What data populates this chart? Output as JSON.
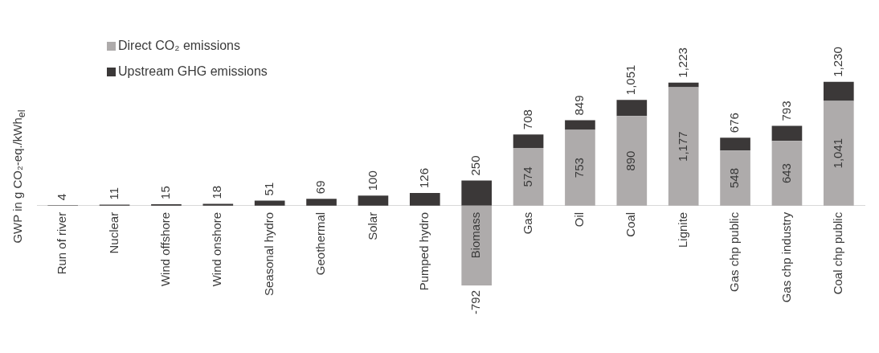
{
  "chart_data": {
    "type": "bar",
    "stacked": true,
    "ylabel": "GWP in g CO₂-eq./kWh$_{el}$",
    "categories": [
      "Run of river",
      "Nuclear",
      "Wind offshore",
      "Wind onshore",
      "Seasonal hydro",
      "Geothermal",
      "Solar",
      "Pumped hydro",
      "Biomass",
      "Gas",
      "Oil",
      "Coal",
      "Lignite",
      "Gas chp public",
      "Gas chp industry",
      "Coal chp public"
    ],
    "series": [
      {
        "name": "Direct CO₂ emissions",
        "color": "#aeabab",
        "values": [
          null,
          null,
          null,
          null,
          null,
          null,
          null,
          null,
          -792,
          574,
          753,
          890,
          1177,
          548,
          643,
          1041
        ],
        "value_labels": [
          null,
          null,
          null,
          null,
          null,
          null,
          null,
          null,
          "-792",
          "574",
          "753",
          "890",
          "1,177",
          "548",
          "643",
          "1,041"
        ]
      },
      {
        "name": "Upstream GHG emissions",
        "color": "#3b3838",
        "values": [
          4,
          11,
          15,
          18,
          51,
          69,
          100,
          126,
          250,
          134,
          96,
          161,
          46,
          128,
          150,
          189
        ],
        "value_labels": [
          "4",
          "11",
          "15",
          "18",
          "51",
          "69",
          "100",
          "126",
          "250",
          null,
          null,
          null,
          null,
          null,
          null,
          null
        ]
      }
    ],
    "totals": [
      null,
      null,
      null,
      null,
      null,
      null,
      null,
      null,
      null,
      "708",
      "849",
      "1,051",
      "1,223",
      "676",
      "793",
      "1,230"
    ],
    "legend": "top left",
    "tick_labels": "x",
    "grid": false
  }
}
